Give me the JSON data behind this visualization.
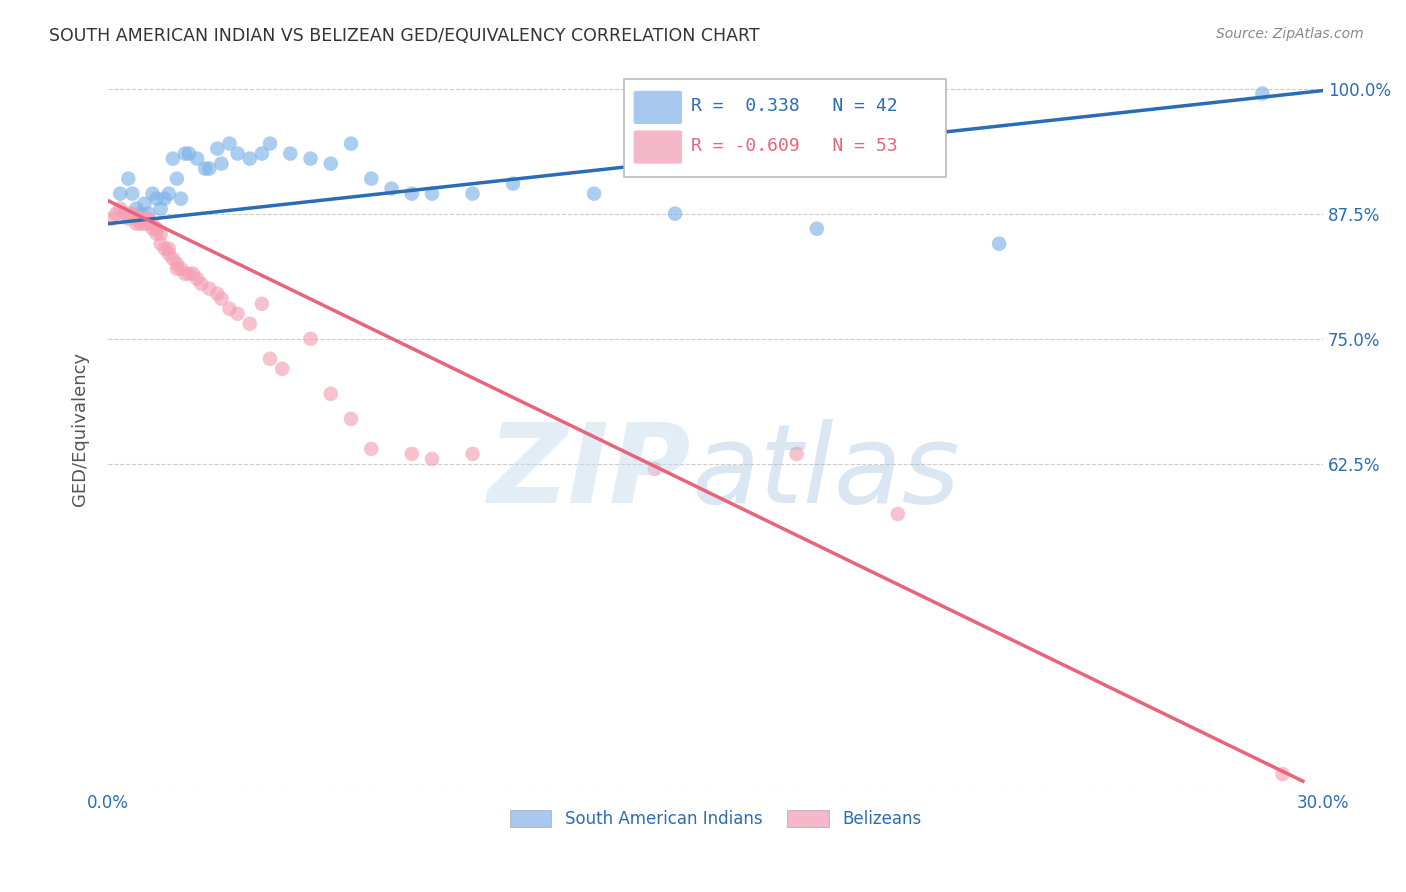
{
  "title": "SOUTH AMERICAN INDIAN VS BELIZEAN GED/EQUIVALENCY CORRELATION CHART",
  "source": "Source: ZipAtlas.com",
  "ylabel": "GED/Equivalency",
  "xlim": [
    0.0,
    0.3
  ],
  "ylim": [
    0.3,
    1.02
  ],
  "xticks": [
    0.0,
    0.05,
    0.1,
    0.15,
    0.2,
    0.25,
    0.3
  ],
  "xticklabels": [
    "0.0%",
    "",
    "",
    "",
    "",
    "",
    "30.0%"
  ],
  "yticks": [
    0.3,
    0.625,
    0.75,
    0.875,
    1.0
  ],
  "yticklabels": [
    "",
    "62.5%",
    "75.0%",
    "87.5%",
    "100.0%"
  ],
  "blue_color": "#7EB3E8",
  "pink_color": "#F4A0B5",
  "blue_line_color": "#2A6DB5",
  "pink_line_color": "#E8647A",
  "legend_box_blue": "#A8C8F0",
  "legend_box_pink": "#F4B8C8",
  "R_blue": 0.338,
  "N_blue": 42,
  "R_pink": -0.609,
  "N_pink": 53,
  "blue_scatter_x": [
    0.003,
    0.005,
    0.006,
    0.007,
    0.008,
    0.009,
    0.01,
    0.011,
    0.012,
    0.013,
    0.014,
    0.015,
    0.016,
    0.017,
    0.018,
    0.019,
    0.02,
    0.022,
    0.024,
    0.025,
    0.027,
    0.028,
    0.03,
    0.032,
    0.035,
    0.038,
    0.04,
    0.045,
    0.05,
    0.055,
    0.06,
    0.065,
    0.07,
    0.075,
    0.08,
    0.09,
    0.1,
    0.12,
    0.14,
    0.175,
    0.22,
    0.285
  ],
  "blue_scatter_y": [
    0.895,
    0.91,
    0.895,
    0.88,
    0.875,
    0.885,
    0.875,
    0.895,
    0.89,
    0.88,
    0.89,
    0.895,
    0.93,
    0.91,
    0.89,
    0.935,
    0.935,
    0.93,
    0.92,
    0.92,
    0.94,
    0.925,
    0.945,
    0.935,
    0.93,
    0.935,
    0.945,
    0.935,
    0.93,
    0.925,
    0.945,
    0.91,
    0.9,
    0.895,
    0.895,
    0.895,
    0.905,
    0.895,
    0.875,
    0.86,
    0.845,
    0.995
  ],
  "pink_scatter_x": [
    0.001,
    0.002,
    0.003,
    0.004,
    0.005,
    0.005,
    0.006,
    0.007,
    0.007,
    0.008,
    0.008,
    0.009,
    0.009,
    0.01,
    0.01,
    0.011,
    0.011,
    0.012,
    0.012,
    0.013,
    0.013,
    0.014,
    0.015,
    0.015,
    0.016,
    0.017,
    0.017,
    0.018,
    0.019,
    0.02,
    0.021,
    0.022,
    0.023,
    0.025,
    0.027,
    0.028,
    0.03,
    0.032,
    0.035,
    0.038,
    0.04,
    0.043,
    0.05,
    0.055,
    0.06,
    0.065,
    0.075,
    0.08,
    0.09,
    0.135,
    0.17,
    0.195,
    0.29
  ],
  "pink_scatter_y": [
    0.87,
    0.875,
    0.88,
    0.875,
    0.875,
    0.87,
    0.875,
    0.87,
    0.865,
    0.87,
    0.865,
    0.865,
    0.87,
    0.87,
    0.865,
    0.86,
    0.865,
    0.855,
    0.86,
    0.855,
    0.845,
    0.84,
    0.84,
    0.835,
    0.83,
    0.825,
    0.82,
    0.82,
    0.815,
    0.815,
    0.815,
    0.81,
    0.805,
    0.8,
    0.795,
    0.79,
    0.78,
    0.775,
    0.765,
    0.785,
    0.73,
    0.72,
    0.75,
    0.695,
    0.67,
    0.64,
    0.635,
    0.63,
    0.635,
    0.62,
    0.635,
    0.575,
    0.315
  ],
  "blue_trend_x": [
    0.0,
    0.3
  ],
  "blue_trend_y": [
    0.865,
    0.998
  ],
  "pink_trend_x": [
    0.0,
    0.295
  ],
  "pink_trend_y": [
    0.888,
    0.308
  ],
  "background_color": "#FFFFFF",
  "grid_color": "#CCCCCC",
  "title_color": "#333333",
  "axis_label_color": "#555555",
  "tick_color": "#2A6DB5",
  "source_color": "#888888"
}
